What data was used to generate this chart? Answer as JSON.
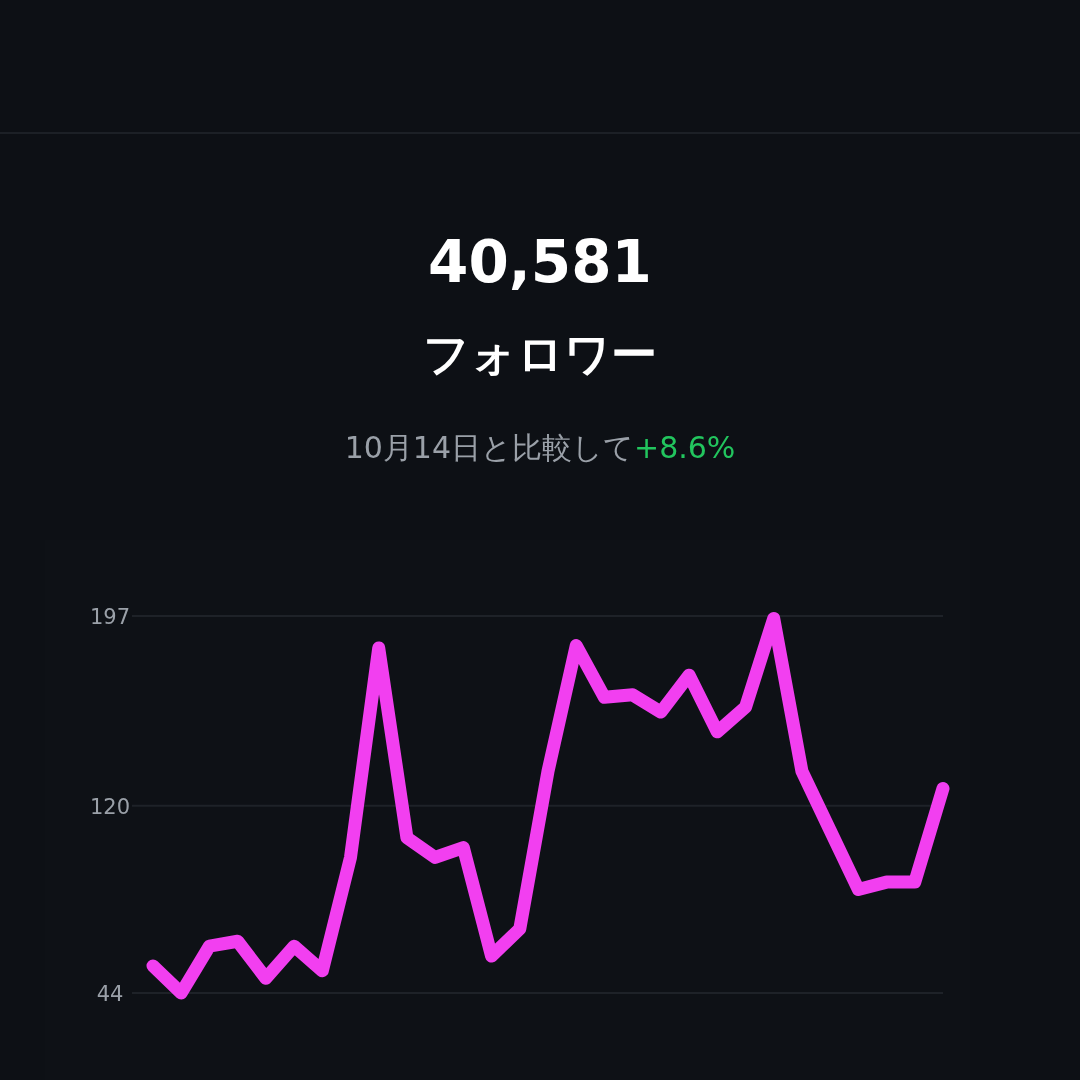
{
  "chart_data": {
    "type": "line",
    "title": "40,581",
    "subtitle": "フォロワー",
    "annotations": [
      "10月14日と比較して",
      "+8.6%"
    ],
    "categories": [
      null,
      null,
      null,
      null,
      null,
      null,
      null,
      null,
      null,
      null,
      null,
      null,
      null,
      null,
      null,
      null,
      null,
      null,
      null,
      null,
      null,
      null,
      null,
      null,
      null,
      null,
      null,
      null,
      null
    ],
    "series": [
      {
        "color": "#f23ff0",
        "values": [
          55,
          44,
          63,
          65,
          50,
          63,
          53,
          99,
          184,
          107,
          99,
          103,
          59,
          70,
          134,
          185,
          164,
          165,
          158,
          173,
          150,
          160,
          196,
          134,
          110,
          86,
          89,
          89,
          127
        ]
      }
    ],
    "ylim": [
      44,
      197
    ],
    "yticks": [
      44,
      120,
      197
    ],
    "grid": "y",
    "tick_labels": "y",
    "marker": "none",
    "line_style": "solid"
  }
}
